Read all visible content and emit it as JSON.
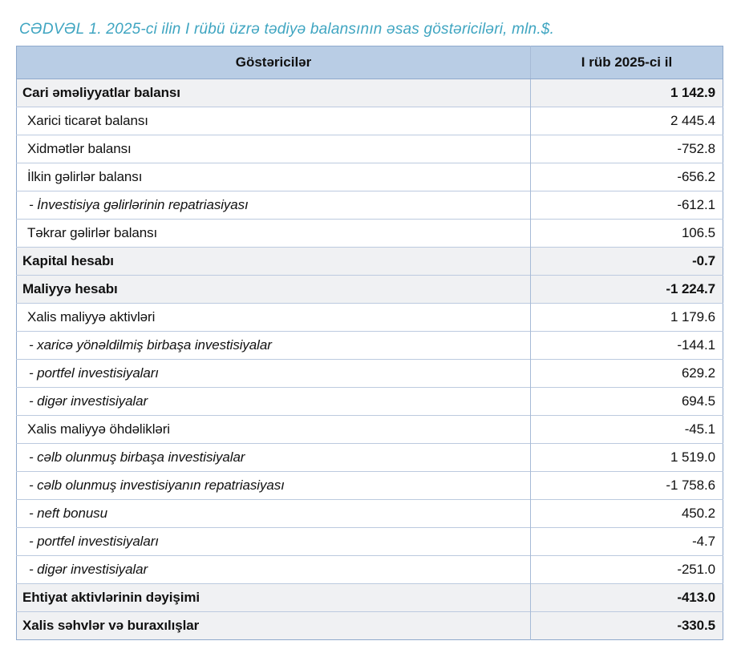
{
  "title": "CƏDVƏL 1. 2025-ci ilin I rübü üzrə tədiyə balansının əsas göstəriciləri, mln.$.",
  "colors": {
    "title": "#3fa5c1",
    "header_bg": "#b9cde5",
    "band_bg": "#f0f1f3",
    "border_outer": "#8fa9cc",
    "border_row": "#bccadf",
    "border_col": "#a6bad6"
  },
  "table": {
    "columns": [
      "Göstəricilər",
      "I rüb 2025-ci il"
    ],
    "rows": [
      {
        "label": "Cari əməliyyatlar balansı",
        "value": "1 142.9",
        "style": "total"
      },
      {
        "label": "Xarici ticarət balansı",
        "value": "2 445.4",
        "style": "sub"
      },
      {
        "label": "Xidmətlər balansı",
        "value": "-752.8",
        "style": "sub"
      },
      {
        "label": "İlkin gəlirlər balansı",
        "value": "-656.2",
        "style": "sub"
      },
      {
        "label": "- İnvestisiya gəlirlərinin repatriasiyası",
        "value": "-612.1",
        "style": "detail"
      },
      {
        "label": "Təkrar gəlirlər balansı",
        "value": "106.5",
        "style": "sub"
      },
      {
        "label": "Kapital hesabı",
        "value": "-0.7",
        "style": "total"
      },
      {
        "label": "Maliyyə hesabı",
        "value": "-1 224.7",
        "style": "total"
      },
      {
        "label": "Xalis maliyyə aktivləri",
        "value": "1 179.6",
        "style": "sub"
      },
      {
        "label": "- xaricə yönəldilmiş birbaşa investisiyalar",
        "value": "-144.1",
        "style": "detail"
      },
      {
        "label": "- portfel investisiyaları",
        "value": "629.2",
        "style": "detail"
      },
      {
        "label": "- digər investisiyalar",
        "value": "694.5",
        "style": "detail"
      },
      {
        "label": "Xalis maliyyə öhdəlikləri",
        "value": "-45.1",
        "style": "sub"
      },
      {
        "label": "- cəlb olunmuş birbaşa investisiyalar",
        "value": "1 519.0",
        "style": "detail"
      },
      {
        "label": "- cəlb olunmuş investisiyanın repatriasiyası",
        "value": "-1 758.6",
        "style": "detail"
      },
      {
        "label": "- neft bonusu",
        "value": "450.2",
        "style": "detail"
      },
      {
        "label": "- portfel investisiyaları",
        "value": "-4.7",
        "style": "detail"
      },
      {
        "label": "- digər investisiyalar",
        "value": "-251.0",
        "style": "detail"
      },
      {
        "label": "Ehtiyat aktivlərinin dəyişimi",
        "value": "-413.0",
        "style": "total"
      },
      {
        "label": "Xalis səhvlər və buraxılışlar",
        "value": "-330.5",
        "style": "total"
      }
    ]
  }
}
